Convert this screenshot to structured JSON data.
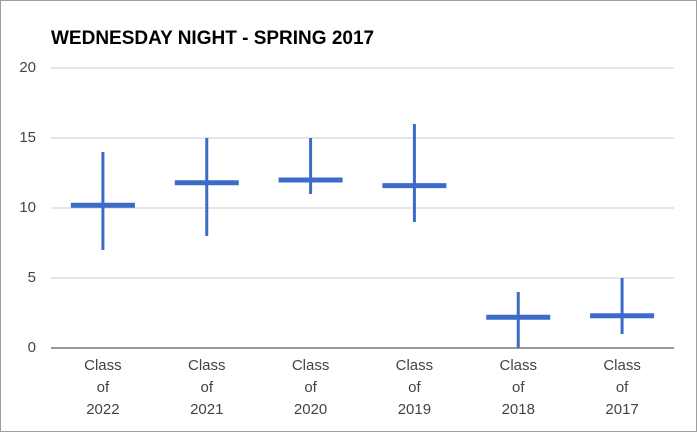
{
  "chart_data": {
    "type": "range",
    "title": "WEDNESDAY NIGHT - SPRING 2017",
    "categories": [
      "Class of 2022",
      "Class of 2021",
      "Class of 2020",
      "Class of 2019",
      "Class of 2018",
      "Class of 2017"
    ],
    "values": [
      10.2,
      11.8,
      12.0,
      11.6,
      2.2,
      2.3
    ],
    "low": [
      7,
      8,
      11,
      9,
      0,
      1
    ],
    "high": [
      14,
      15,
      15,
      16,
      4,
      5
    ],
    "color": "#3b6cc7",
    "ylim": [
      0,
      20
    ],
    "yticks": [
      0,
      5,
      10,
      15,
      20
    ],
    "grid": true
  }
}
